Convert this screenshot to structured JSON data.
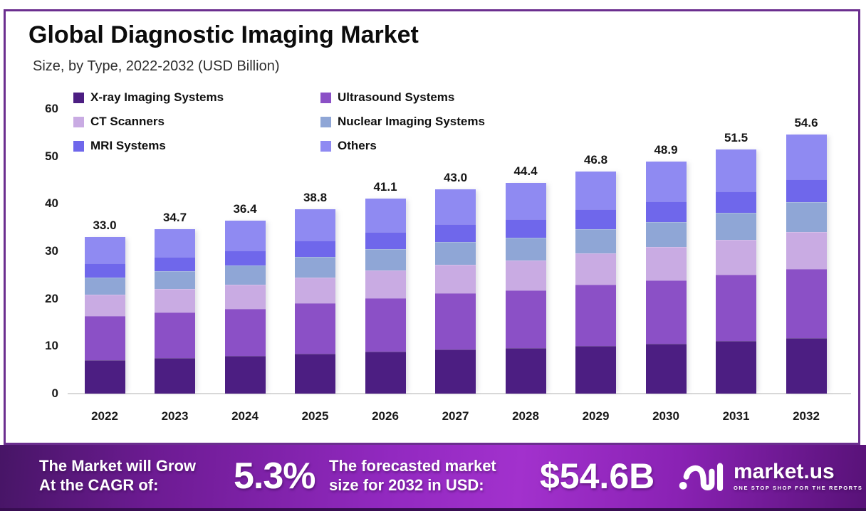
{
  "card": {
    "title": "Global Diagnostic Imaging Market",
    "subtitle": "Size, by Type, 2022-2032 (USD Billion)"
  },
  "chart_data": {
    "type": "bar",
    "stacked": true,
    "title": "Global Diagnostic Imaging Market",
    "subtitle": "Size, by Type, 2022-2032 (USD Billion)",
    "unit": "USD Billion",
    "categories": [
      "2022",
      "2023",
      "2024",
      "2025",
      "2026",
      "2027",
      "2028",
      "2029",
      "2030",
      "2031",
      "2032"
    ],
    "series": [
      {
        "name": "X-ray Imaging Systems",
        "color": "#4c1e82",
        "values": [
          7.1,
          7.5,
          7.9,
          8.4,
          8.9,
          9.3,
          9.6,
          10.1,
          10.5,
          11.1,
          11.7
        ]
      },
      {
        "name": "Ultrasound Systems",
        "color": "#8b50c6",
        "values": [
          9.2,
          9.6,
          10.0,
          10.6,
          11.2,
          11.8,
          12.1,
          12.8,
          13.4,
          14.0,
          14.6
        ]
      },
      {
        "name": "CT Scanners",
        "color": "#c9abe3",
        "values": [
          4.6,
          4.9,
          5.1,
          5.5,
          5.8,
          6.1,
          6.3,
          6.6,
          7.0,
          7.3,
          7.8
        ]
      },
      {
        "name": "Nuclear Imaging Systems",
        "color": "#8fa6d6",
        "values": [
          3.6,
          3.8,
          4.0,
          4.3,
          4.5,
          4.8,
          4.9,
          5.2,
          5.3,
          5.7,
          6.2
        ]
      },
      {
        "name": "MRI Systems",
        "color": "#6f67eb",
        "values": [
          2.9,
          3.0,
          3.2,
          3.4,
          3.6,
          3.7,
          3.9,
          4.1,
          4.3,
          4.5,
          4.8
        ]
      },
      {
        "name": "Others",
        "color": "#8f8af2",
        "values": [
          5.6,
          5.9,
          6.2,
          6.6,
          7.1,
          7.3,
          7.6,
          8.0,
          8.4,
          8.9,
          9.5
        ]
      }
    ],
    "totals": [
      33.0,
      34.7,
      36.4,
      38.8,
      41.1,
      43.0,
      44.4,
      46.8,
      48.9,
      51.5,
      54.6
    ],
    "total_labels": [
      "33.0",
      "34.7",
      "36.4",
      "38.8",
      "41.1",
      "43.0",
      "44.4",
      "46.8",
      "48.9",
      "51.5",
      "54.6"
    ],
    "y_ticks": [
      0,
      10,
      20,
      30,
      40,
      50,
      60
    ],
    "ylim": [
      0,
      60
    ],
    "grid": false,
    "legend_position": "top-left-two-columns",
    "xlabel": "",
    "ylabel": ""
  },
  "banner": {
    "left_line1": "The Market will Grow",
    "left_line2": "At the CAGR of:",
    "cagr_value": "5.3%",
    "mid_line1": "The forecasted market",
    "mid_line2": "size for 2032 in USD:",
    "forecast_value": "$54.6B",
    "brand_name": "market.us",
    "brand_tagline": "ONE STOP SHOP FOR THE REPORTS"
  },
  "colors": {
    "card_border": "#6b2e8f",
    "axis_line": "#d8d8d8",
    "text_dark": "#1a1a1a",
    "banner_border_bottom": "#380d52"
  }
}
